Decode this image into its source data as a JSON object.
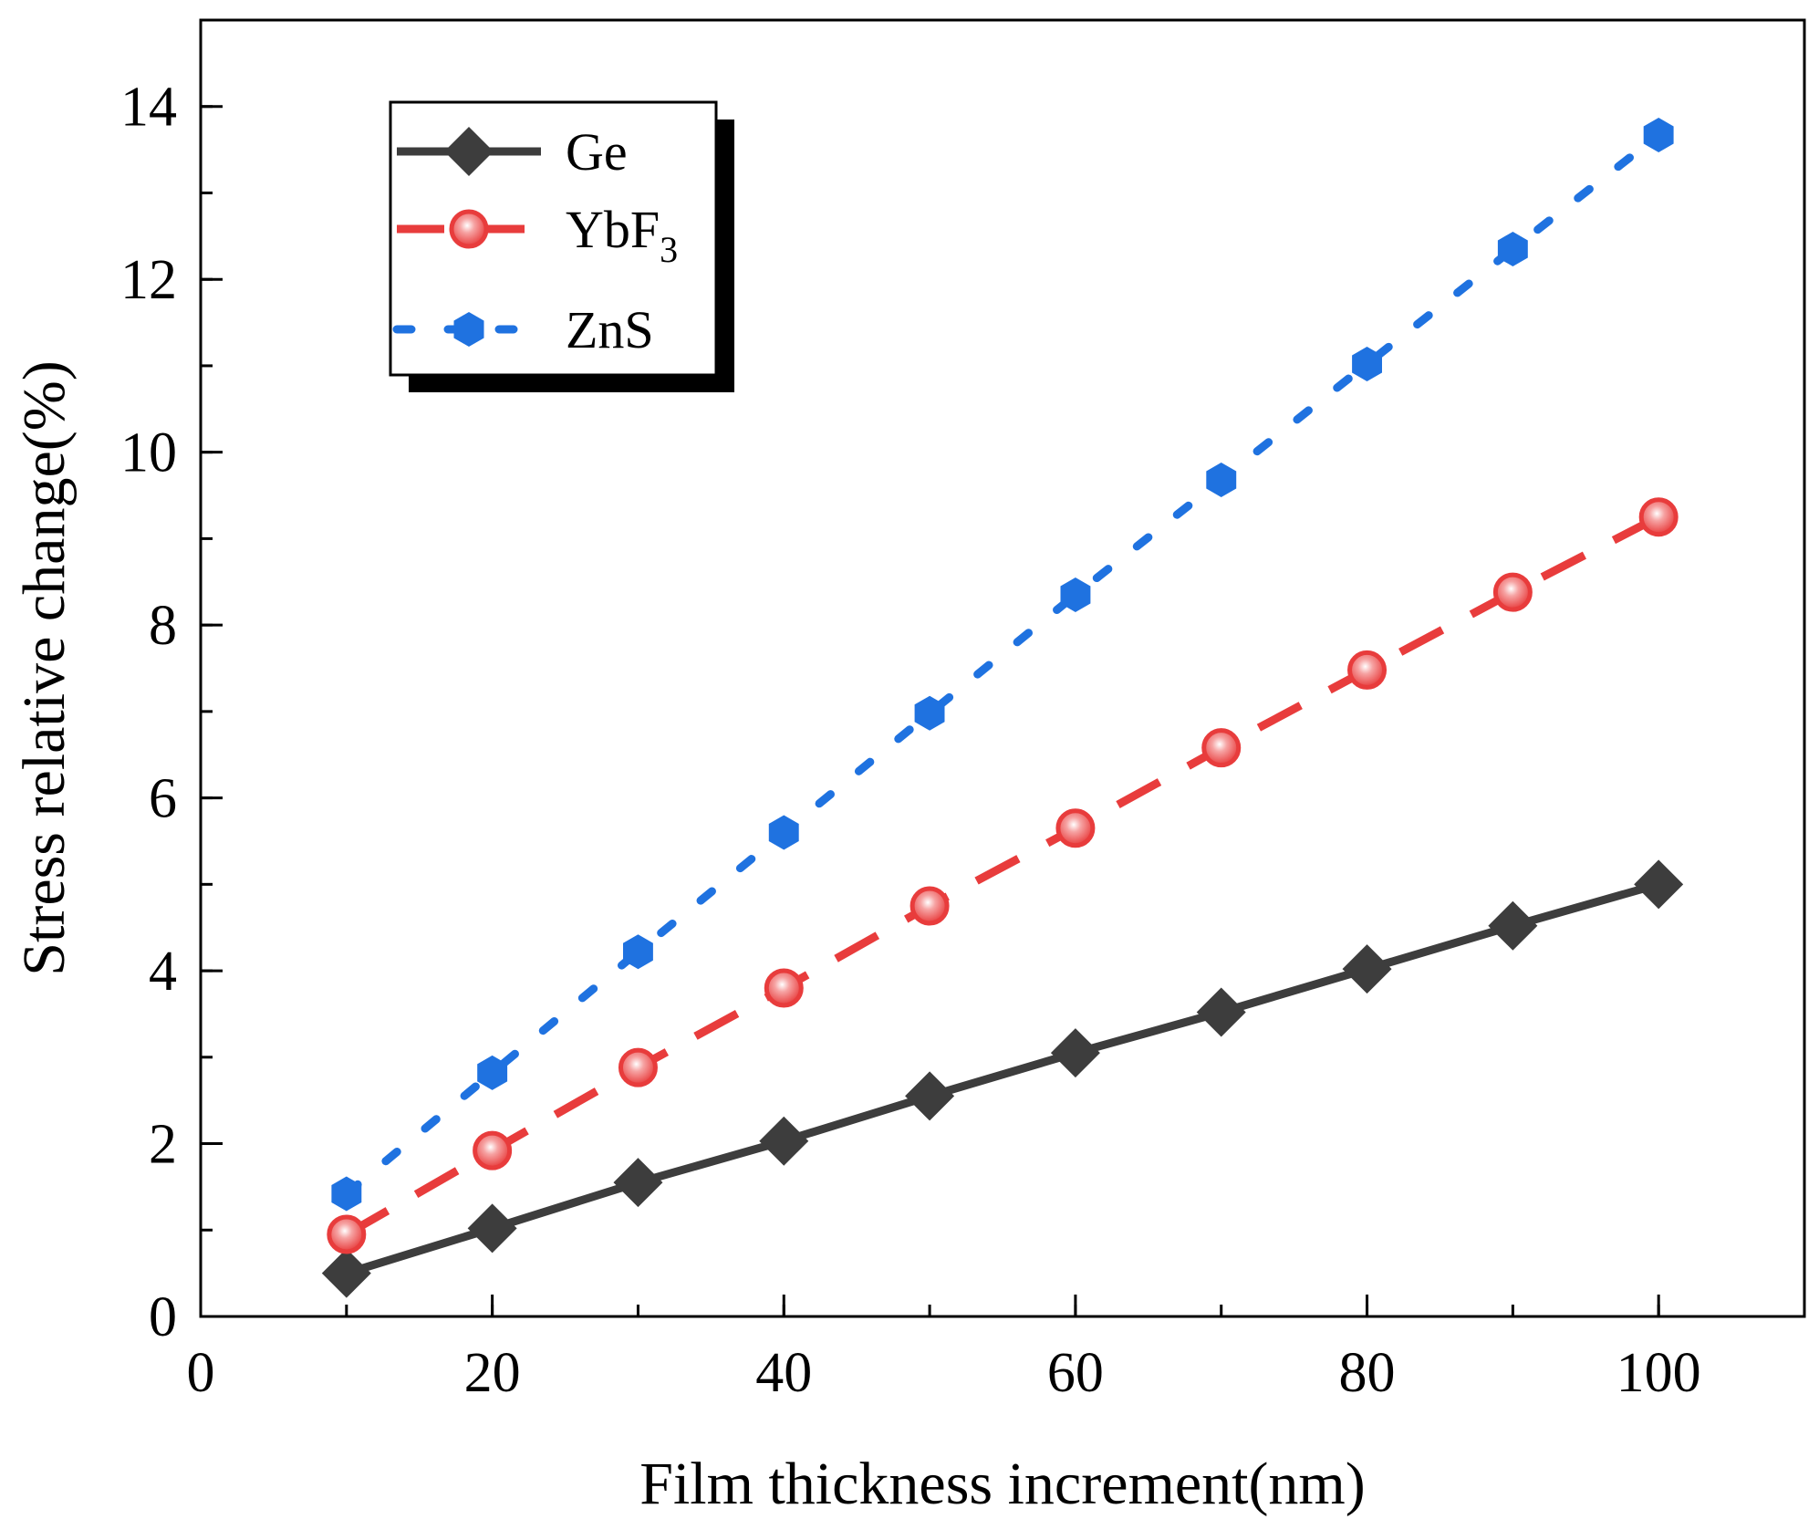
{
  "chart_data": {
    "type": "line",
    "xlabel": "Film thickness increment(nm)",
    "ylabel": "Stress relative change(%)",
    "xlim": [
      0,
      110
    ],
    "ylim": [
      0,
      15
    ],
    "x_ticks": [
      "0",
      "20",
      "40",
      "60",
      "80",
      "100"
    ],
    "y_ticks": [
      "0",
      "2",
      "4",
      "6",
      "8",
      "10",
      "12",
      "14"
    ],
    "x_tick_values": [
      0,
      20,
      40,
      60,
      80,
      100
    ],
    "y_tick_values": [
      0,
      2,
      4,
      6,
      8,
      10,
      12,
      14
    ],
    "x_minor_step": 10,
    "y_minor_step": 1,
    "grid": false,
    "legend_position": "top-left",
    "x": [
      10,
      20,
      30,
      40,
      50,
      60,
      70,
      80,
      90,
      100
    ],
    "series": [
      {
        "name": "Ge",
        "name_sub": "",
        "color": "#3d3d3d",
        "line_style": "solid",
        "marker": "diamond",
        "values": [
          0.5,
          1.02,
          1.55,
          2.03,
          2.55,
          3.05,
          3.52,
          4.02,
          4.52,
          5.0
        ]
      },
      {
        "name": "YbF",
        "name_sub": "3",
        "color": "#e83c3c",
        "line_style": "dash",
        "marker": "circle",
        "values": [
          0.95,
          1.92,
          2.88,
          3.8,
          4.75,
          5.65,
          6.58,
          7.48,
          8.38,
          9.25
        ]
      },
      {
        "name": "ZnS",
        "name_sub": "",
        "color": "#1f72e0",
        "line_style": "dot",
        "marker": "hexagon",
        "values": [
          1.42,
          2.82,
          4.22,
          5.6,
          6.98,
          8.35,
          9.68,
          11.02,
          12.35,
          13.67
        ]
      }
    ]
  }
}
